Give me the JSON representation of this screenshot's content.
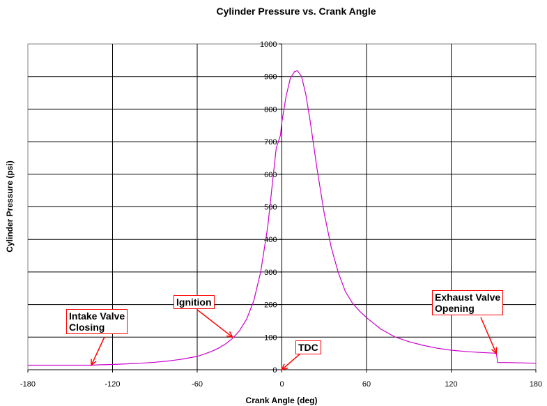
{
  "chart_data": {
    "type": "line",
    "title": "Cylinder Pressure vs. Crank Angle",
    "xlabel": "Crank Angle (deg)",
    "ylabel": "Cylinder Pressure (psi)",
    "xlim": [
      -180,
      180
    ],
    "ylim": [
      0,
      1000
    ],
    "xticks": [
      -180,
      -120,
      -60,
      0,
      60,
      120,
      180
    ],
    "xtick_labels": [
      "-180",
      "-120",
      "-60",
      "0",
      "60",
      "120",
      "180"
    ],
    "yticks": [
      0,
      100,
      200,
      300,
      400,
      500,
      600,
      700,
      800,
      900,
      1000
    ],
    "ytick_labels": [
      "0",
      "100",
      "200",
      "300",
      "400",
      "500",
      "600",
      "700",
      "800",
      "900",
      "1000"
    ],
    "grid": true,
    "series": [
      {
        "color": "#cc00cc",
        "x": [
          -180,
          -170,
          -160,
          -150,
          -140,
          -135,
          -130,
          -120,
          -110,
          -100,
          -90,
          -80,
          -70,
          -60,
          -55,
          -50,
          -45,
          -40,
          -35,
          -30,
          -25,
          -20,
          -15,
          -10,
          -7,
          -4,
          -1,
          0,
          3,
          6,
          9,
          11,
          14,
          17,
          20,
          25,
          30,
          35,
          40,
          45,
          50,
          55,
          60,
          70,
          80,
          90,
          100,
          110,
          120,
          130,
          140,
          150,
          152,
          153,
          160,
          170,
          180
        ],
        "y": [
          14,
          14,
          14,
          14,
          14,
          14,
          15,
          16,
          18,
          20,
          23,
          27,
          33,
          41,
          48,
          56,
          66,
          79,
          96,
          120,
          155,
          210,
          300,
          440,
          560,
          680,
          720,
          760,
          840,
          895,
          915,
          918,
          900,
          845,
          765,
          615,
          480,
          375,
          298,
          240,
          205,
          180,
          160,
          125,
          101,
          86,
          75,
          66,
          60,
          56,
          53,
          51,
          50,
          22,
          22,
          21,
          20
        ]
      }
    ],
    "annotations": [
      {
        "text": "Intake Valve\nClosing",
        "x": -135,
        "y": 14
      },
      {
        "text": "Ignition",
        "x": -35,
        "y": 100
      },
      {
        "text": "TDC",
        "x": 0,
        "y": 0
      },
      {
        "text": "Exhaust Valve\nOpening",
        "x": 152,
        "y": 50
      }
    ],
    "annotation_color": "#ff0000"
  }
}
